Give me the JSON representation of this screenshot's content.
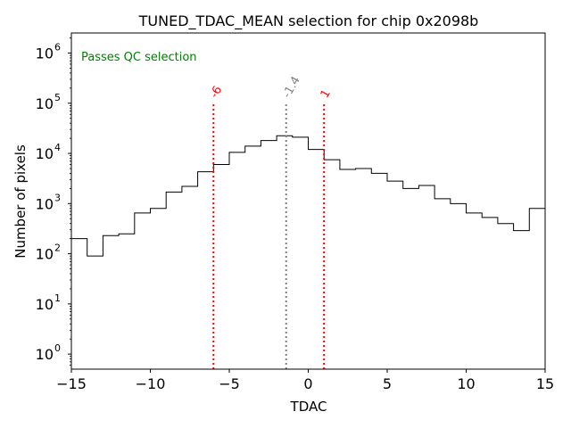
{
  "chart_data": {
    "type": "histogram",
    "title": "TUNED_TDAC_MEAN selection for chip 0x2098b",
    "xlabel": "TDAC",
    "ylabel": "Number of pixels",
    "xlim": [
      -15,
      15
    ],
    "ylim_exp": [
      -0.3,
      6.4
    ],
    "yscale": "log",
    "xticks": [
      {
        "value": -15,
        "label": "−15"
      },
      {
        "value": -10,
        "label": "−10"
      },
      {
        "value": -5,
        "label": "−5"
      },
      {
        "value": 0,
        "label": "0"
      },
      {
        "value": 5,
        "label": "5"
      },
      {
        "value": 10,
        "label": "10"
      },
      {
        "value": 15,
        "label": "15"
      }
    ],
    "yticks": [
      {
        "exp": 0,
        "base": "10",
        "sup": "0"
      },
      {
        "exp": 1,
        "base": "10",
        "sup": "1"
      },
      {
        "exp": 2,
        "base": "10",
        "sup": "2"
      },
      {
        "exp": 3,
        "base": "10",
        "sup": "3"
      },
      {
        "exp": 4,
        "base": "10",
        "sup": "4"
      },
      {
        "exp": 5,
        "base": "10",
        "sup": "5"
      },
      {
        "exp": 6,
        "base": "10",
        "sup": "6"
      }
    ],
    "bin_edges": [
      -15,
      -14,
      -13,
      -12,
      -11,
      -10,
      -9,
      -8,
      -7,
      -6,
      -5,
      -4,
      -3,
      -2,
      -1,
      0,
      1,
      2,
      3,
      4,
      5,
      6,
      7,
      8,
      9,
      10,
      11,
      12,
      13,
      14,
      15
    ],
    "counts": [
      200,
      90,
      230,
      250,
      650,
      800,
      1700,
      2200,
      4300,
      6000,
      10500,
      14000,
      18000,
      22500,
      21000,
      12000,
      7500,
      4800,
      5000,
      4000,
      2800,
      2000,
      2300,
      1250,
      1000,
      650,
      530,
      400,
      290,
      800
    ],
    "vlines": [
      {
        "x": -6,
        "label": "-6",
        "color": "#ff0000"
      },
      {
        "x": -1.4,
        "label": "-1.4",
        "color": "#808080"
      },
      {
        "x": 1,
        "label": "1",
        "color": "#ff0000"
      }
    ],
    "annotation": {
      "text": "Passes QC selection",
      "color": "#008000"
    },
    "colors": {
      "hist": "#000000",
      "axes": "#000000"
    }
  }
}
